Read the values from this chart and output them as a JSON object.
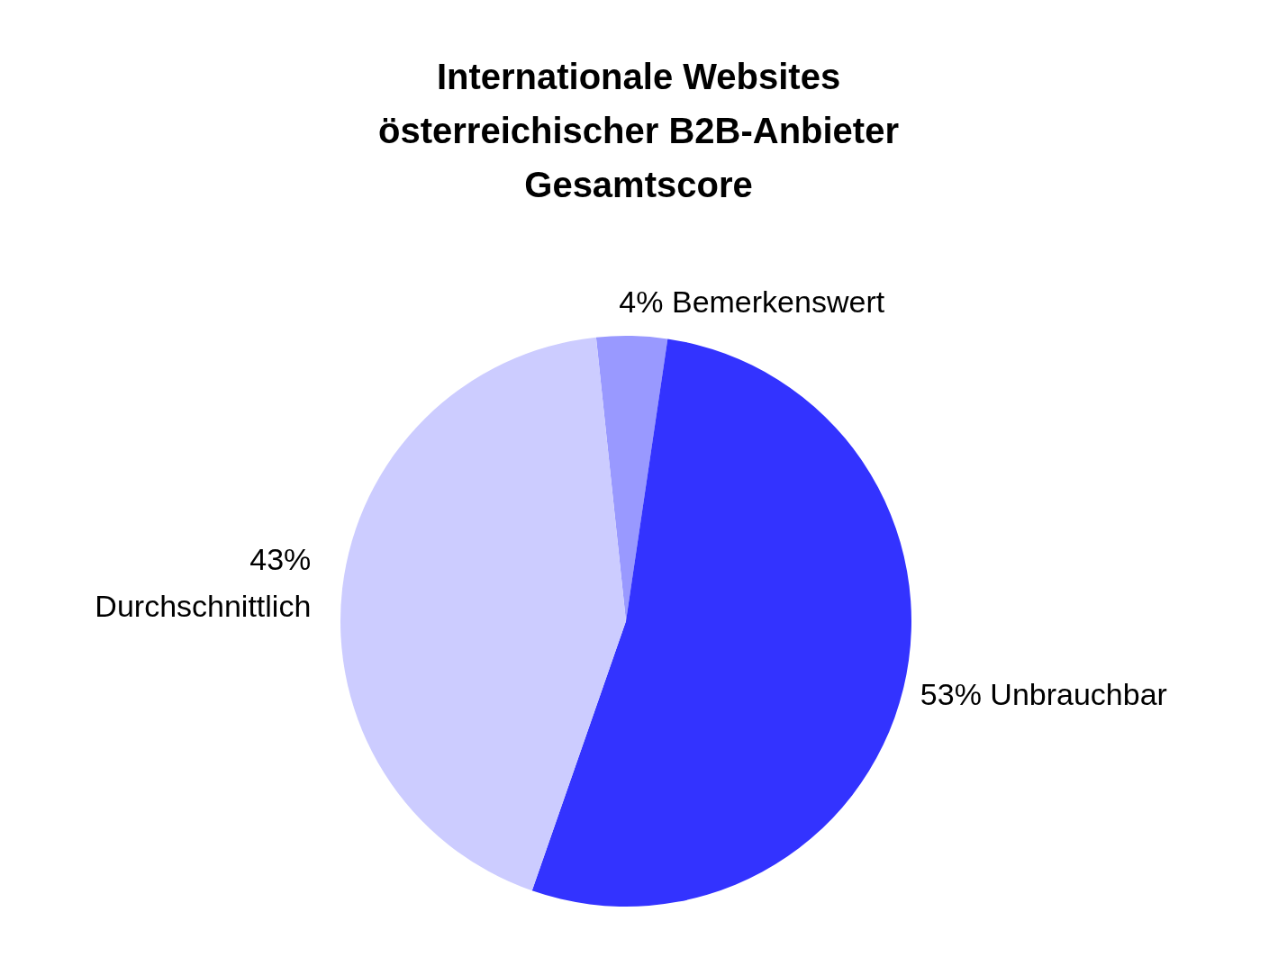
{
  "chart_data": {
    "type": "pie",
    "title": "Internationale Websites\nösterreichischer B2B-Anbieter\nGesamtscore",
    "categories": [
      "Bemerkenswert",
      "Unbrauchbar",
      "Durchschnittlich"
    ],
    "values": [
      4,
      53,
      43
    ],
    "value_labels": [
      "4%",
      "53%",
      "43%"
    ],
    "colors": [
      "#9999ff",
      "#3333ff",
      "#ccccff"
    ],
    "legend": false
  }
}
